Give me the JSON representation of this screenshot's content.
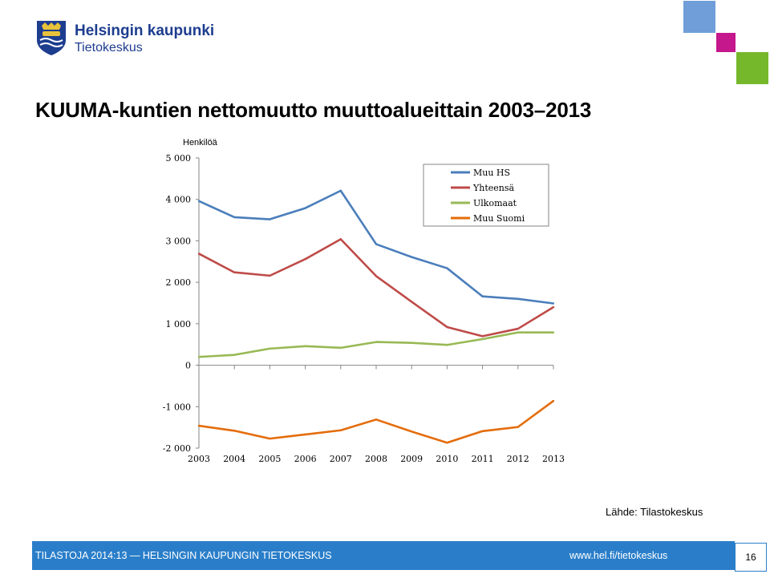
{
  "header": {
    "logo_line1": "Helsingin kaupunki",
    "logo_line2": "Tietokeskus",
    "accent_colors": [
      "#6f9ed8",
      "#c4188c",
      "#75b82b"
    ]
  },
  "title": "KUUMA-kuntien nettomuutto muuttoalueittain 2003–2013",
  "chart_data": {
    "type": "line",
    "ylabel": "Henkilöä",
    "xlabel": "",
    "x": [
      "2003",
      "2004",
      "2005",
      "2006",
      "2007",
      "2008",
      "2009",
      "2010",
      "2011",
      "2012",
      "2013"
    ],
    "ylim": [
      -2000,
      5000
    ],
    "yticks": [
      5000,
      4000,
      3000,
      2000,
      1000,
      0,
      -1000,
      -2000
    ],
    "ytick_labels": [
      "5 000",
      "4 000",
      "3 000",
      "2 000",
      "1 000",
      "0",
      "-1 000",
      "-2 000"
    ],
    "legend_position": "top-right",
    "grid": false,
    "series": [
      {
        "name": "Muu HS",
        "color": "#4a7ebb",
        "values": [
          3960,
          3570,
          3520,
          3790,
          4210,
          2920,
          2610,
          2340,
          1660,
          1600,
          1490
        ]
      },
      {
        "name": "Yhteensä",
        "color": "#be4b48",
        "values": [
          2690,
          2240,
          2160,
          2560,
          3040,
          2150,
          1530,
          920,
          700,
          880,
          1400
        ]
      },
      {
        "name": "Ulkomaat",
        "color": "#98b954",
        "values": [
          200,
          250,
          400,
          460,
          420,
          560,
          540,
          490,
          630,
          790,
          790
        ]
      },
      {
        "name": "Muu Suomi",
        "color": "#e46c0a",
        "values": [
          -1460,
          -1580,
          -1770,
          -1670,
          -1570,
          -1310,
          -1600,
          -1870,
          -1590,
          -1490,
          -860
        ]
      }
    ]
  },
  "source": "Lähde: Tilastokeskus",
  "footer": {
    "left_text": "TILASTOJA 2014:13 — HELSINGIN KAUPUNGIN TIETOKESKUS",
    "url": "www.hel.fi/tietokeskus",
    "page_number": "16"
  }
}
